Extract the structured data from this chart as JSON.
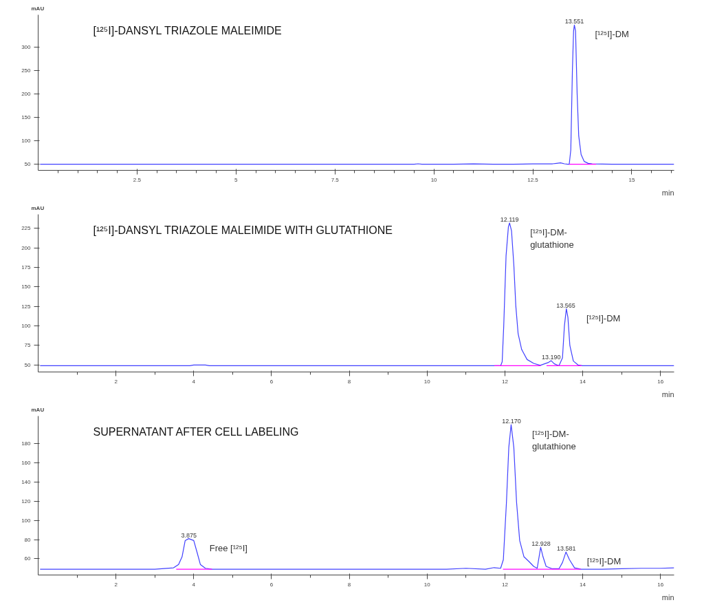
{
  "chart_data": [
    {
      "type": "line",
      "title": "[¹²⁵I]-DANSYL TRIAZOLE MALEIMIDE",
      "xlabel": "min",
      "ylabel": "mAU",
      "xlim": [
        0,
        16.07
      ],
      "ylim": [
        36,
        370
      ],
      "xticks": [
        {
          "value": 0.5,
          "label": null
        },
        {
          "value": 1,
          "label": null
        },
        {
          "value": 1.5,
          "label": null
        },
        {
          "value": 2,
          "label": null
        },
        2.5,
        {
          "value": 3,
          "label": null
        },
        {
          "value": 3.5,
          "label": null
        },
        {
          "value": 4,
          "label": null
        },
        {
          "value": 4.5,
          "label": null
        },
        5,
        {
          "value": 5.5,
          "label": null
        },
        {
          "value": 6,
          "label": null
        },
        {
          "value": 6.5,
          "label": null
        },
        {
          "value": 7,
          "label": null
        },
        7.5,
        {
          "value": 8,
          "label": null
        },
        {
          "value": 8.5,
          "label": null
        },
        {
          "value": 9,
          "label": null
        },
        {
          "value": 9.5,
          "label": null
        },
        10,
        {
          "value": 10.5,
          "label": null
        },
        {
          "value": 11,
          "label": null
        },
        {
          "value": 11.5,
          "label": null
        },
        {
          "value": 12,
          "label": null
        },
        12.5,
        {
          "value": 13,
          "label": null
        },
        {
          "value": 13.5,
          "label": null
        },
        {
          "value": 14,
          "label": null
        },
        {
          "value": 14.5,
          "label": null
        },
        15,
        {
          "value": 15.5,
          "label": null
        },
        {
          "value": 16,
          "label": null
        }
      ],
      "yticks": [
        50,
        100,
        150,
        200,
        250,
        300
      ],
      "series": [
        {
          "color": "#4040ff",
          "x": [
            0.05,
            1,
            2,
            3,
            4,
            5,
            6,
            7,
            8,
            9,
            9.5,
            9.6,
            9.7,
            10.5,
            11,
            11.5,
            12,
            12.5,
            12.8,
            13.0,
            13.1,
            13.2,
            13.3,
            13.38,
            13.42,
            13.46,
            13.5,
            13.53,
            13.55,
            13.58,
            13.62,
            13.66,
            13.72,
            13.8,
            13.9,
            14.0,
            14.5,
            15,
            15.5,
            16.07
          ],
          "values": [
            49,
            49,
            49,
            49,
            49,
            49,
            49,
            49,
            49,
            49,
            49,
            50,
            49,
            49,
            50,
            49,
            49,
            50,
            50,
            50,
            51,
            52,
            50,
            49,
            49,
            80,
            250,
            335,
            348,
            335,
            200,
            110,
            70,
            55,
            51,
            50,
            49,
            49,
            49,
            49
          ]
        },
        {
          "color": "#ff00ff",
          "x": [
            13.42,
            14.1
          ],
          "values": [
            49,
            49
          ]
        }
      ],
      "annotations": [
        {
          "text": "13.551",
          "x": 13.551,
          "y": 348
        },
        {
          "text": "[¹²⁵I]-DM",
          "x": 13.551,
          "y": 348
        }
      ]
    },
    {
      "type": "line",
      "title": "[¹²⁵I]-DANSYL TRIAZOLE MALEIMIDE WITH GLUTATHIONE",
      "xlabel": "min",
      "ylabel": "mAU",
      "xlim": [
        0,
        16.35
      ],
      "ylim": [
        41,
        243
      ],
      "xticks": [
        {
          "value": 1,
          "label": null
        },
        2,
        {
          "value": 3,
          "label": null
        },
        4,
        {
          "value": 5,
          "label": null
        },
        6,
        {
          "value": 7,
          "label": null
        },
        8,
        {
          "value": 9,
          "label": null
        },
        10,
        {
          "value": 11,
          "label": null
        },
        12,
        {
          "value": 13,
          "label": null
        },
        14,
        {
          "value": 15,
          "label": null
        },
        16
      ],
      "yticks": [
        50,
        75,
        100,
        125,
        150,
        175,
        200,
        225
      ],
      "series": [
        {
          "color": "#4040ff",
          "x": [
            0.05,
            1,
            2,
            3,
            3.9,
            4.0,
            4.15,
            4.3,
            4.4,
            5,
            6,
            7,
            8,
            9,
            10,
            11,
            11.5,
            11.89,
            11.93,
            11.97,
            12.03,
            12.09,
            12.12,
            12.17,
            12.23,
            12.28,
            12.34,
            12.43,
            12.57,
            12.74,
            12.91,
            13.02,
            13.11,
            13.19,
            13.27,
            13.39,
            13.48,
            13.53,
            13.58,
            13.62,
            13.67,
            13.76,
            13.88,
            13.99,
            14.5,
            15,
            16,
            16.35
          ],
          "values": [
            49,
            49,
            49,
            49,
            49,
            50,
            50,
            50,
            49,
            49,
            49,
            49,
            49,
            49,
            49,
            49,
            49,
            49,
            54,
            100,
            190,
            227,
            232,
            222,
            178,
            126,
            90,
            70,
            57,
            52,
            49.5,
            51.5,
            53,
            55.5,
            51.5,
            49,
            59,
            100,
            122,
            111,
            75,
            55,
            50,
            49,
            49,
            49,
            49,
            49
          ]
        },
        {
          "color": "#ff00ff",
          "x": [
            11.73,
            12.92
          ],
          "values": [
            49,
            49
          ]
        },
        {
          "color": "#ff00ff",
          "x": [
            13.07,
            13.97
          ],
          "values": [
            49,
            49
          ]
        }
      ],
      "annotations": [
        {
          "text": "12.119",
          "x": 12.119,
          "y": 232
        },
        {
          "text": "[¹²⁵I]-DM-\nglutathione",
          "x": 12.119,
          "y": 232
        },
        {
          "text": "13.190",
          "x": 13.19,
          "y": 55.5
        },
        {
          "text": "13.565",
          "x": 13.565,
          "y": 122
        },
        {
          "text": "[¹²⁵I]-DM",
          "x": 13.565,
          "y": 122
        }
      ]
    },
    {
      "type": "line",
      "title": "SUPERNATANT AFTER CELL LABELING",
      "xlabel": "min",
      "ylabel": "mAU",
      "xlim": [
        0,
        16.35
      ],
      "ylim": [
        43,
        209
      ],
      "xticks": [
        {
          "value": 1,
          "label": null
        },
        2,
        {
          "value": 3,
          "label": null
        },
        4,
        {
          "value": 5,
          "label": null
        },
        6,
        {
          "value": 7,
          "label": null
        },
        8,
        {
          "value": 9,
          "label": null
        },
        10,
        {
          "value": 11,
          "label": null
        },
        12,
        {
          "value": 13,
          "label": null
        },
        14,
        {
          "value": 15,
          "label": null
        },
        16
      ],
      "yticks": [
        60,
        80,
        100,
        120,
        140,
        160,
        180
      ],
      "series": [
        {
          "color": "#4040ff",
          "x": [
            0.05,
            1,
            2,
            3,
            3.48,
            3.61,
            3.7,
            3.78,
            3.87,
            4.0,
            4.09,
            4.17,
            4.3,
            4.47,
            5,
            6,
            7,
            8,
            9,
            10,
            10.5,
            11,
            11.5,
            11.72,
            11.89,
            11.96,
            12.04,
            12.1,
            12.16,
            12.23,
            12.3,
            12.38,
            12.49,
            12.62,
            12.74,
            12.83,
            12.92,
            12.98,
            13.06,
            13.22,
            13.39,
            13.48,
            13.57,
            13.66,
            13.79,
            13.96,
            14.5,
            15,
            15.5,
            16,
            16.35
          ],
          "values": [
            49,
            49,
            49,
            49,
            50.5,
            54,
            62,
            79,
            81,
            79,
            66,
            54,
            50,
            49,
            49,
            49,
            49,
            49,
            49,
            49,
            49,
            50,
            49,
            50.7,
            50,
            59,
            119,
            176,
            200,
            176,
            119,
            79,
            62,
            57,
            52,
            50,
            72,
            62,
            52,
            49.5,
            49.5,
            56,
            67,
            59,
            50.5,
            49,
            49,
            49.5,
            50,
            50,
            50.5
          ]
        },
        {
          "color": "#ff00ff",
          "x": [
            3.55,
            4.47
          ],
          "values": [
            49,
            49
          ]
        },
        {
          "color": "#ff00ff",
          "x": [
            11.95,
            13.95
          ],
          "values": [
            49,
            49
          ]
        }
      ],
      "annotations": [
        {
          "text": "3.875",
          "x": 3.875,
          "y": 81
        },
        {
          "text": "Free [¹²⁵I]",
          "x": 3.875,
          "y": 81
        },
        {
          "text": "12.170",
          "x": 12.17,
          "y": 200
        },
        {
          "text": "[¹²⁵I]-DM-\nglutathione",
          "x": 12.17,
          "y": 200
        },
        {
          "text": "12.928",
          "x": 12.928,
          "y": 72
        },
        {
          "text": "13.581",
          "x": 13.581,
          "y": 67
        },
        {
          "text": "[¹²⁵I]-DM",
          "x": 13.581,
          "y": 67
        }
      ]
    }
  ]
}
